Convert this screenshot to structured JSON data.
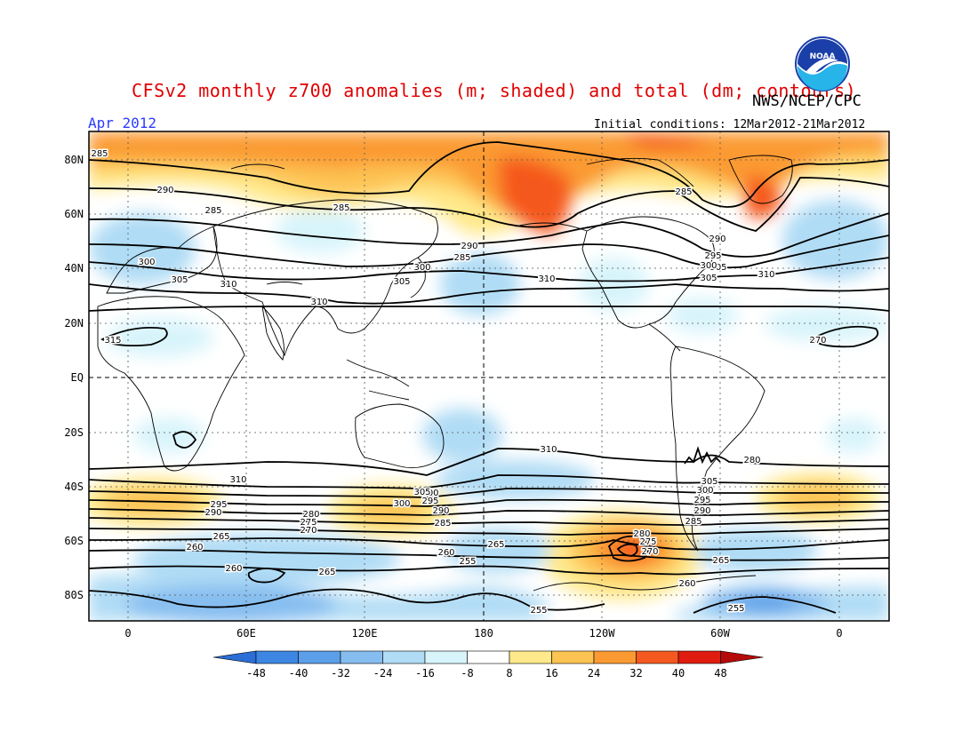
{
  "title": "CFSv2 monthly z700 anomalies (m; shaded) and total (dm; contours)",
  "agency": "NWS/NCEP/CPC",
  "logo_text": "NOAA",
  "month": "Apr 2012",
  "initial_conditions": "Initial conditions: 12Mar2012-21Mar2012",
  "lat_labels": [
    "80N",
    "60N",
    "40N",
    "20N",
    "EQ",
    "20S",
    "40S",
    "60S",
    "80S"
  ],
  "lon_labels": [
    "0",
    "60E",
    "120E",
    "180",
    "120W",
    "60W",
    "0"
  ],
  "colorbar": {
    "labels": [
      "-48",
      "-40",
      "-32",
      "-24",
      "-16",
      "-8",
      "8",
      "16",
      "24",
      "32",
      "40",
      "48"
    ],
    "colors": [
      "#2b6fd6",
      "#3d86e3",
      "#5c9ee8",
      "#86bdf0",
      "#b0dcf5",
      "#d8f4fb",
      "#ffffff",
      "#ffe98a",
      "#fdc353",
      "#fb9a32",
      "#f5591f",
      "#e01c10",
      "#b50a0a"
    ]
  },
  "contour_labels": [
    "285",
    "290",
    "285",
    "285",
    "290",
    "285",
    "300",
    "305",
    "310",
    "310",
    "305",
    "300",
    "305",
    "310",
    "315",
    "290",
    "295",
    "300",
    "305",
    "310",
    "285",
    "300",
    "295",
    "290",
    "285",
    "305",
    "300",
    "295",
    "290",
    "310",
    "310",
    "305",
    "300",
    "295",
    "290",
    "285",
    "280",
    "275",
    "270",
    "265",
    "260",
    "255",
    "280",
    "275",
    "270",
    "265",
    "260",
    "255",
    "265",
    "260",
    "255",
    "260",
    "265",
    "270",
    "280"
  ]
}
